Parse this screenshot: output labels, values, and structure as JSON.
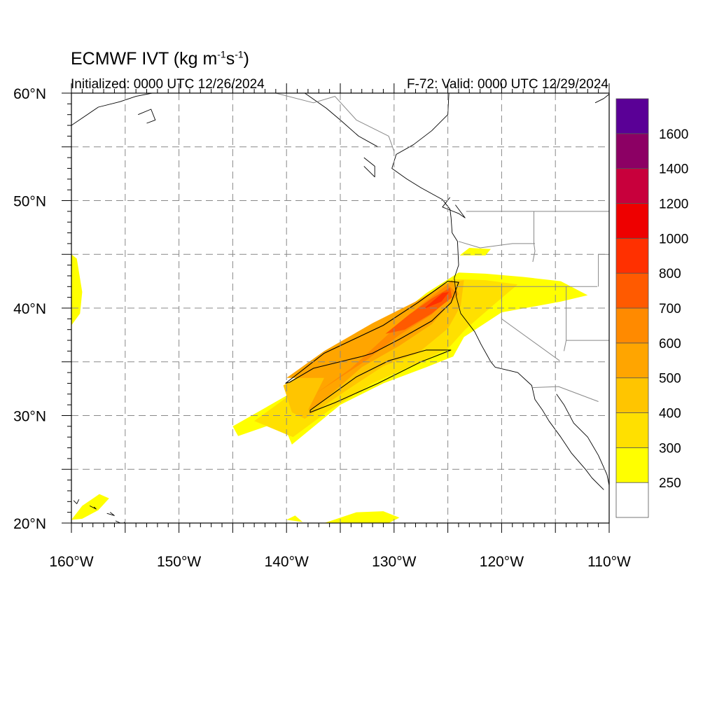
{
  "title": {
    "main": "ECMWF IVT",
    "units_pre": "(kg m",
    "units_exp1": "-1",
    "units_mid": "s",
    "units_exp2": "-1",
    "units_post": ")"
  },
  "subtitle_left": "Initialized: 0000 UTC 12/26/2024",
  "subtitle_right": "F-72: Valid: 0000 UTC 12/29/2024",
  "map": {
    "projection": "cylindrical-equidistant",
    "lon_range": [
      -160,
      -110
    ],
    "lat_range": [
      20,
      60
    ],
    "grid": "dashed, every 5 degrees",
    "lon_tick_labels": [
      "160°W",
      "150°W",
      "140°W",
      "130°W",
      "120°W",
      "110°W"
    ],
    "lat_tick_labels": [
      "20°N",
      "30°N",
      "40°N",
      "50°N",
      "60°N"
    ],
    "colors": {
      "coastline": "#000000",
      "borders": "#888888",
      "contour_line": "#000000"
    },
    "ivt_regions": [
      {
        "level": 250,
        "color": "#ffff00",
        "points": [
          [
            -145,
            29
          ],
          [
            -138,
            33
          ],
          [
            -134,
            36
          ],
          [
            -130,
            39
          ],
          [
            -127,
            41.4
          ],
          [
            -124,
            43.3
          ],
          [
            -121.5,
            43.2
          ],
          [
            -118,
            42.9
          ],
          [
            -114.5,
            42.5
          ],
          [
            -112,
            41.2
          ],
          [
            -114.5,
            40.6
          ],
          [
            -120,
            39.6
          ],
          [
            -123.5,
            37.3
          ],
          [
            -124.5,
            35.5
          ],
          [
            -127,
            34.5
          ],
          [
            -131,
            33
          ],
          [
            -135,
            31
          ],
          [
            -139.5,
            27.3
          ],
          [
            -140,
            28.5
          ],
          [
            -141,
            29.3
          ],
          [
            -144.5,
            28.1
          ]
        ]
      },
      {
        "level": 250,
        "color": "#ffff00",
        "points": [
          [
            -160,
            38.4
          ],
          [
            -159.2,
            39.5
          ],
          [
            -159,
            41.5
          ],
          [
            -159.5,
            44.6
          ],
          [
            -160,
            45
          ]
        ]
      },
      {
        "level": 250,
        "color": "#ffff00",
        "points": [
          [
            -160,
            20.3
          ],
          [
            -159,
            21.6
          ],
          [
            -157.4,
            22.7
          ],
          [
            -156.5,
            22.3
          ],
          [
            -157.5,
            21.2
          ],
          [
            -159,
            20.4
          ]
        ]
      },
      {
        "level": 250,
        "color": "#ffff00",
        "points": [
          [
            -136.5,
            20
          ],
          [
            -133.5,
            21
          ],
          [
            -131,
            21.1
          ],
          [
            -129.5,
            20.5
          ],
          [
            -130.5,
            20
          ]
        ]
      },
      {
        "level": 250,
        "color": "#ffff00",
        "points": [
          [
            -140,
            20.3
          ],
          [
            -139.2,
            20.7
          ],
          [
            -138.5,
            20.1
          ]
        ]
      },
      {
        "level": 250,
        "color": "#ffff00",
        "points": [
          [
            -123.9,
            44.9
          ],
          [
            -123,
            45.6
          ],
          [
            -121,
            45.5
          ],
          [
            -121.5,
            44.9
          ]
        ]
      },
      {
        "level": 300,
        "color": "#ffe000",
        "points": [
          [
            -143,
            29.5
          ],
          [
            -137.5,
            33.5
          ],
          [
            -133.5,
            36.5
          ],
          [
            -130,
            39
          ],
          [
            -127,
            41
          ],
          [
            -124.5,
            42.7
          ],
          [
            -121.5,
            42.6
          ],
          [
            -118.5,
            42.2
          ],
          [
            -120.5,
            40.5
          ],
          [
            -123.4,
            38
          ],
          [
            -125,
            36.2
          ],
          [
            -128,
            34.8
          ],
          [
            -132,
            33
          ],
          [
            -136,
            30.5
          ],
          [
            -139.4,
            28
          ]
        ]
      },
      {
        "level": 400,
        "color": "#ffc500",
        "points": [
          [
            -140.3,
            32.8
          ],
          [
            -137.5,
            34.5
          ],
          [
            -134.5,
            36.6
          ],
          [
            -130.5,
            38.6
          ],
          [
            -127.7,
            40.5
          ],
          [
            -125.3,
            42.3
          ],
          [
            -123.5,
            42.6
          ],
          [
            -123.8,
            40.2
          ],
          [
            -125,
            38.1
          ],
          [
            -127.8,
            35.8
          ],
          [
            -131,
            34.6
          ],
          [
            -134.5,
            32.3
          ],
          [
            -138.3,
            29.7
          ],
          [
            -139.5,
            30.3
          ]
        ]
      },
      {
        "level": 500,
        "color": "#ffa500",
        "points": [
          [
            -140,
            33.5
          ],
          [
            -136.5,
            36
          ],
          [
            -132,
            38.6
          ],
          [
            -128,
            40.6
          ],
          [
            -124.6,
            42.6
          ],
          [
            -124,
            41.3
          ],
          [
            -126.5,
            38.5
          ],
          [
            -129.5,
            36.5
          ],
          [
            -133,
            34.5
          ],
          [
            -137,
            31
          ],
          [
            -138,
            30.5
          ],
          [
            -136.5,
            33.5
          ]
        ]
      },
      {
        "level": 600,
        "color": "#ff8a00",
        "points": [
          [
            -137.2,
            32.1
          ],
          [
            -134,
            34.4
          ],
          [
            -130.5,
            37.6
          ],
          [
            -127.5,
            40.3
          ],
          [
            -125,
            42.2
          ],
          [
            -124.3,
            41.5
          ],
          [
            -126.5,
            39.4
          ],
          [
            -129.5,
            37.5
          ],
          [
            -132.5,
            35.2
          ]
        ]
      },
      {
        "level": 700,
        "color": "#ff5a00",
        "points": [
          [
            -130.8,
            37.6
          ],
          [
            -128.6,
            39.4
          ],
          [
            -126.5,
            40.9
          ],
          [
            -124.8,
            41.9
          ],
          [
            -124.6,
            41
          ],
          [
            -126.5,
            39.5
          ],
          [
            -129,
            38
          ]
        ]
      },
      {
        "level": 800,
        "color": "#ff3000",
        "points": [
          [
            -127.3,
            39.9
          ],
          [
            -125.5,
            41.4
          ],
          [
            -124.9,
            41.5
          ],
          [
            -125.6,
            40.6
          ]
        ]
      }
    ],
    "ivt_contours": [
      {
        "level": 500,
        "points": [
          [
            -140.1,
            33
          ],
          [
            -136.5,
            35.8
          ],
          [
            -131,
            38.4
          ],
          [
            -127.8,
            40.5
          ],
          [
            -125,
            42.5
          ],
          [
            -124,
            42.4
          ],
          [
            -124.7,
            40.5
          ],
          [
            -126.5,
            38.8
          ],
          [
            -129.5,
            37.1
          ],
          [
            -132,
            35.8
          ],
          [
            -133,
            35.5
          ],
          [
            -137.5,
            34.4
          ],
          [
            -139.7,
            33.1
          ]
        ]
      },
      {
        "level": 500,
        "points": [
          [
            -137.8,
            30.5
          ],
          [
            -133.5,
            33.6
          ],
          [
            -130.5,
            35.1
          ],
          [
            -127,
            36.1
          ],
          [
            -124.7,
            36.1
          ],
          [
            -127.5,
            35
          ],
          [
            -131.5,
            33
          ],
          [
            -135.5,
            31.2
          ],
          [
            -137.8,
            30.3
          ]
        ]
      }
    ],
    "features": [
      {
        "kind": "coastline",
        "points": [
          [
            -124.9,
            60
          ],
          [
            -125,
            58
          ],
          [
            -126.5,
            56.5
          ],
          [
            -128.2,
            55.2
          ],
          [
            -129.8,
            54.3
          ],
          [
            -130.2,
            53
          ],
          [
            -128.8,
            52
          ],
          [
            -127.5,
            51.2
          ],
          [
            -125.5,
            50.1
          ],
          [
            -124.8,
            49.2
          ],
          [
            -124.7,
            48.4
          ],
          [
            -124.6,
            47
          ],
          [
            -124.1,
            46.2
          ],
          [
            -124,
            44
          ],
          [
            -124.4,
            42.8
          ],
          [
            -124.2,
            41
          ],
          [
            -123.8,
            39.5
          ],
          [
            -122.5,
            37.8
          ],
          [
            -121.9,
            36.6
          ],
          [
            -121,
            35
          ],
          [
            -120.6,
            34.5
          ],
          [
            -118.5,
            34
          ],
          [
            -117.2,
            32.8
          ],
          [
            -116.9,
            31.5
          ],
          [
            -116.2,
            30.5
          ],
          [
            -115.6,
            29.5
          ],
          [
            -114.5,
            28
          ],
          [
            -113.5,
            26.5
          ],
          [
            -112.2,
            25
          ],
          [
            -111.6,
            24.2
          ],
          [
            -110.5,
            23.1
          ]
        ]
      },
      {
        "kind": "coastline",
        "points": [
          [
            -114.9,
            32
          ],
          [
            -114.2,
            31
          ],
          [
            -113.3,
            29.3
          ],
          [
            -112,
            28
          ],
          [
            -111,
            26.3
          ],
          [
            -110.2,
            24.5
          ],
          [
            -110,
            23.5
          ]
        ]
      },
      {
        "kind": "coastline",
        "points": [
          [
            -160,
            57
          ],
          [
            -157.5,
            58.7
          ],
          [
            -155.5,
            59.2
          ],
          [
            -154,
            59.7
          ],
          [
            -152.5,
            60
          ]
        ]
      },
      {
        "kind": "coastline",
        "points": [
          [
            -153.8,
            58
          ],
          [
            -152.6,
            58.5
          ],
          [
            -152.2,
            57.5
          ],
          [
            -153,
            57.2
          ]
        ]
      },
      {
        "kind": "coastline",
        "points": [
          [
            -138.3,
            60
          ],
          [
            -136.3,
            58.6
          ],
          [
            -135,
            57.5
          ],
          [
            -133.3,
            56
          ],
          [
            -131.5,
            55
          ]
        ]
      },
      {
        "kind": "coastline",
        "points": [
          [
            -132.8,
            54
          ],
          [
            -131.8,
            53.2
          ],
          [
            -131.8,
            52.2
          ],
          [
            -132.8,
            53.2
          ]
        ]
      },
      {
        "kind": "coastline",
        "points": [
          [
            -124.8,
            50.3
          ],
          [
            -125.5,
            49.4
          ],
          [
            -124,
            48.8
          ],
          [
            -123.4,
            48.4
          ],
          [
            -124.3,
            49.6
          ]
        ]
      },
      {
        "kind": "coastline",
        "points": [
          [
            -111.3,
            59.1
          ],
          [
            -110.5,
            59.5
          ],
          [
            -110,
            59.9
          ]
        ]
      },
      {
        "kind": "coastline",
        "points": [
          [
            -159.8,
            22.1
          ],
          [
            -159.5,
            21.8
          ],
          [
            -159.3,
            22.2
          ]
        ]
      },
      {
        "kind": "coastline",
        "points": [
          [
            -158.3,
            21.6
          ],
          [
            -157.7,
            21.3
          ],
          [
            -157.9,
            21.5
          ]
        ]
      },
      {
        "kind": "coastline",
        "points": [
          [
            -156.7,
            20.9
          ],
          [
            -156,
            20.7
          ],
          [
            -156.4,
            21
          ]
        ]
      },
      {
        "kind": "coastline",
        "points": [
          [
            -155.9,
            20.2
          ],
          [
            -155,
            19.8
          ],
          [
            -155.1,
            20.1
          ]
        ]
      },
      {
        "kind": "border",
        "points": [
          [
            -123.3,
            49
          ],
          [
            -115,
            49
          ],
          [
            -110,
            49
          ]
        ]
      },
      {
        "kind": "border",
        "points": [
          [
            -141,
            60
          ],
          [
            -137.5,
            59.1
          ],
          [
            -135.5,
            59.7
          ],
          [
            -133.5,
            57.5
          ],
          [
            -130.5,
            56
          ],
          [
            -130,
            54.6
          ]
        ]
      },
      {
        "kind": "border",
        "points": [
          [
            -124.2,
            42
          ],
          [
            -120,
            42
          ],
          [
            -117,
            42
          ],
          [
            -111.1,
            42
          ]
        ]
      },
      {
        "kind": "border",
        "points": [
          [
            -124,
            46.2
          ],
          [
            -122,
            45.6
          ],
          [
            -119,
            46
          ],
          [
            -116.9,
            46
          ]
        ]
      },
      {
        "kind": "border",
        "points": [
          [
            -117,
            49
          ],
          [
            -117,
            46
          ],
          [
            -116.9,
            45.3
          ],
          [
            -117.1,
            44.3
          ]
        ]
      },
      {
        "kind": "border",
        "points": [
          [
            -120,
            42
          ],
          [
            -120,
            39
          ],
          [
            -114.6,
            35.1
          ]
        ]
      },
      {
        "kind": "border",
        "points": [
          [
            -114,
            42
          ],
          [
            -114,
            37
          ],
          [
            -114.2,
            36
          ]
        ]
      },
      {
        "kind": "border",
        "points": [
          [
            -114,
            37
          ],
          [
            -110,
            37
          ]
        ]
      },
      {
        "kind": "border",
        "points": [
          [
            -117.1,
            32.6
          ],
          [
            -114.7,
            32.7
          ],
          [
            -111,
            31.3
          ]
        ]
      },
      {
        "kind": "border",
        "points": [
          [
            -111,
            45
          ],
          [
            -111,
            42
          ]
        ]
      },
      {
        "kind": "border",
        "points": [
          [
            -111,
            45
          ],
          [
            -110,
            45
          ]
        ]
      }
    ]
  },
  "colorbar": {
    "levels": [
      "250",
      "300",
      "400",
      "500",
      "600",
      "700",
      "800",
      "1000",
      "1200",
      "1400",
      "1600"
    ],
    "colors": [
      "#ffffff",
      "#ffff00",
      "#ffe000",
      "#ffc500",
      "#ffa500",
      "#ff8a00",
      "#ff5a00",
      "#ff3000",
      "#ee0000",
      "#c8003c",
      "#8c0064",
      "#5a0096"
    ]
  }
}
